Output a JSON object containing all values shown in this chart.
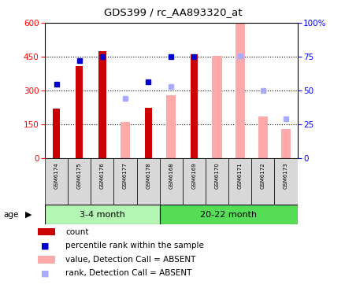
{
  "title": "GDS399 / rc_AA893320_at",
  "samples": [
    "GSM6174",
    "GSM6175",
    "GSM6176",
    "GSM6177",
    "GSM6178",
    "GSM6168",
    "GSM6169",
    "GSM6170",
    "GSM6171",
    "GSM6172",
    "GSM6173"
  ],
  "group1_size": 5,
  "group2_size": 6,
  "group1_label": "3-4 month",
  "group2_label": "20-22 month",
  "group1_color": "#b3f5b3",
  "group2_color": "#55dd55",
  "count": [
    220,
    410,
    475,
    null,
    225,
    null,
    460,
    null,
    null,
    null,
    null
  ],
  "rank": [
    330,
    435,
    450,
    null,
    340,
    450,
    450,
    null,
    null,
    null,
    null
  ],
  "value_absent": [
    null,
    null,
    null,
    163,
    null,
    280,
    null,
    455,
    600,
    185,
    130
  ],
  "rank_absent": [
    null,
    null,
    null,
    265,
    null,
    320,
    null,
    null,
    455,
    300,
    175
  ],
  "ylim_left": [
    0,
    600
  ],
  "ylim_right": [
    0,
    100
  ],
  "yticks_left": [
    0,
    150,
    300,
    450,
    600
  ],
  "yticks_right": [
    0,
    25,
    50,
    75,
    100
  ],
  "count_color": "#cc0000",
  "rank_color": "#0000cc",
  "value_absent_color": "#ffaaaa",
  "rank_absent_color": "#aaaaff",
  "legend_items": [
    {
      "label": "count",
      "color": "#cc0000",
      "type": "bar"
    },
    {
      "label": "percentile rank within the sample",
      "color": "#0000cc",
      "type": "square"
    },
    {
      "label": "value, Detection Call = ABSENT",
      "color": "#ffaaaa",
      "type": "bar"
    },
    {
      "label": "rank, Detection Call = ABSENT",
      "color": "#aaaaff",
      "type": "square"
    }
  ]
}
